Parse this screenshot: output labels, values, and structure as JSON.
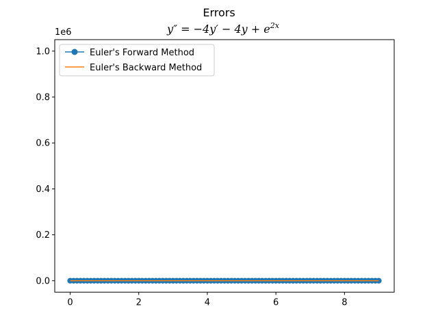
{
  "colors": {
    "forward": "#1f77b4",
    "backward": "#ff7f0e"
  },
  "chart_data": {
    "type": "line",
    "title": "Errors",
    "subtitle": "y″ = −4y′ − 4y + e^{2x}",
    "subtitle_main": "y″ = −4y′ − 4y + e",
    "subtitle_sup": "2x",
    "xlabel": "",
    "ylabel": "",
    "y_offset_label": "1e6",
    "xlim": [
      -0.45,
      9.45
    ],
    "ylim": [
      -0.05,
      1.05
    ],
    "x_ticks": [
      0,
      2,
      4,
      6,
      8
    ],
    "x_tick_labels": [
      "0",
      "2",
      "4",
      "6",
      "8"
    ],
    "y_ticks": [
      0.0,
      0.2,
      0.4,
      0.6,
      0.8,
      1.0
    ],
    "y_tick_labels": [
      "0.0",
      "0.2",
      "0.4",
      "0.6",
      "0.8",
      "1.0"
    ],
    "grid": false,
    "legend": "upper-left",
    "series": [
      {
        "name": "Euler's Forward Method",
        "marker": "circle",
        "x": [
          0,
          0.1,
          0.2,
          0.3,
          0.4,
          0.5,
          0.6,
          0.7,
          0.8,
          0.9,
          1.0,
          1.1,
          1.2,
          1.3,
          1.4,
          1.5,
          1.6,
          1.7,
          1.8,
          1.9,
          2.0,
          2.1,
          2.2,
          2.3,
          2.4,
          2.5,
          2.6,
          2.7,
          2.8,
          2.9,
          3.0,
          3.1,
          3.2,
          3.3,
          3.4,
          3.5,
          3.6,
          3.7,
          3.8,
          3.9,
          4.0,
          4.1,
          4.2,
          4.3,
          4.4,
          4.5,
          4.6,
          4.7,
          4.8,
          4.9,
          5.0,
          5.1,
          5.2,
          5.3,
          5.4,
          5.5,
          5.6,
          5.7,
          5.8,
          5.9,
          6.0,
          6.1,
          6.2,
          6.3,
          6.4,
          6.5,
          6.6,
          6.7,
          6.8,
          6.9,
          7.0,
          7.1,
          7.2,
          7.3,
          7.4,
          7.5,
          7.6,
          7.7,
          7.8,
          7.9,
          8.0,
          8.1,
          8.2,
          8.3,
          8.4,
          8.5,
          8.6,
          8.7,
          8.8,
          8.9,
          9.0
        ],
        "y": [
          0.0,
          0.0,
          0.0,
          0.0,
          0.0,
          0.0,
          0.0,
          0.0,
          0.0,
          0.0,
          0.0,
          0.0,
          0.0,
          0.0,
          0.0,
          0.0,
          0.0,
          0.0,
          0.0,
          0.0,
          0.0,
          0.0,
          0.0,
          0.0,
          0.0,
          0.0,
          0.0,
          0.0,
          0.0,
          0.0,
          0.0,
          0.0,
          0.0,
          0.0,
          0.0,
          0.0,
          0.0,
          0.0,
          0.0,
          0.0,
          0.0,
          0.0,
          0.0,
          0.0,
          0.0,
          0.0,
          0.0,
          0.0,
          0.0,
          0.0,
          0.0,
          0.0,
          0.0,
          0.0,
          0.0,
          0.0,
          0.0,
          0.0,
          0.0,
          0.0,
          0.0,
          0.0,
          0.0,
          0.0,
          0.0,
          0.0,
          0.0,
          0.0,
          0.0,
          0.0,
          0.0,
          0.0,
          0.0,
          0.0,
          0.0,
          0.0,
          0.0,
          0.0,
          0.0,
          0.0,
          0.0,
          0.0,
          0.0,
          0.0,
          0.0,
          0.0,
          0.0,
          0.0,
          0.0,
          0.0,
          0.0
        ]
      },
      {
        "name": "Euler's Backward Method",
        "marker": "none",
        "x": [
          0,
          0.1,
          0.2,
          0.3,
          0.4,
          0.5,
          0.6,
          0.7,
          0.8,
          0.9,
          1.0,
          1.1,
          1.2,
          1.3,
          1.4,
          1.5,
          1.6,
          1.7,
          1.8,
          1.9,
          2.0,
          2.1,
          2.2,
          2.3,
          2.4,
          2.5,
          2.6,
          2.7,
          2.8,
          2.9,
          3.0,
          3.1,
          3.2,
          3.3,
          3.4,
          3.5,
          3.6,
          3.7,
          3.8,
          3.9,
          4.0,
          4.1,
          4.2,
          4.3,
          4.4,
          4.5,
          4.6,
          4.7,
          4.8,
          4.9,
          5.0,
          5.1,
          5.2,
          5.3,
          5.4,
          5.5,
          5.6,
          5.7,
          5.8,
          5.9,
          6.0,
          6.1,
          6.2,
          6.3,
          6.4,
          6.5,
          6.6,
          6.7,
          6.8,
          6.9,
          7.0,
          7.1,
          7.2,
          7.3,
          7.4,
          7.5,
          7.6,
          7.7,
          7.8,
          7.9,
          8.0,
          8.1,
          8.2,
          8.3,
          8.4,
          8.5,
          8.6,
          8.7,
          8.8,
          8.9,
          9.0
        ],
        "y": [
          0.0,
          0.0,
          0.0,
          0.0,
          0.0,
          0.0,
          0.0,
          0.0,
          0.0,
          0.0,
          0.0,
          0.0,
          0.0,
          0.0,
          0.0,
          0.0,
          0.0,
          0.0,
          0.0,
          0.0,
          0.0,
          0.0,
          0.0,
          0.0,
          0.0,
          0.0,
          0.0,
          0.0,
          0.0,
          0.0,
          0.0,
          0.0,
          0.0,
          0.0,
          0.0,
          0.0,
          0.0,
          0.0,
          0.0,
          0.0,
          0.0,
          0.0,
          0.0,
          0.0,
          0.0,
          0.0,
          0.0,
          0.0,
          0.0,
          0.0,
          0.0,
          0.0,
          0.0,
          0.0,
          0.0,
          0.0,
          0.0,
          0.0,
          0.0,
          0.0,
          0.0,
          0.0,
          0.0,
          0.0,
          0.0,
          0.0,
          0.0,
          0.0,
          0.0,
          0.0,
          0.0,
          0.0,
          0.0,
          0.0,
          0.0,
          0.0,
          0.0,
          0.0,
          0.0,
          0.0,
          0.0,
          0.0,
          0.0,
          0.0,
          0.0,
          0.0,
          0.0,
          0.0,
          0.0,
          0.0,
          0.0
        ]
      }
    ]
  }
}
